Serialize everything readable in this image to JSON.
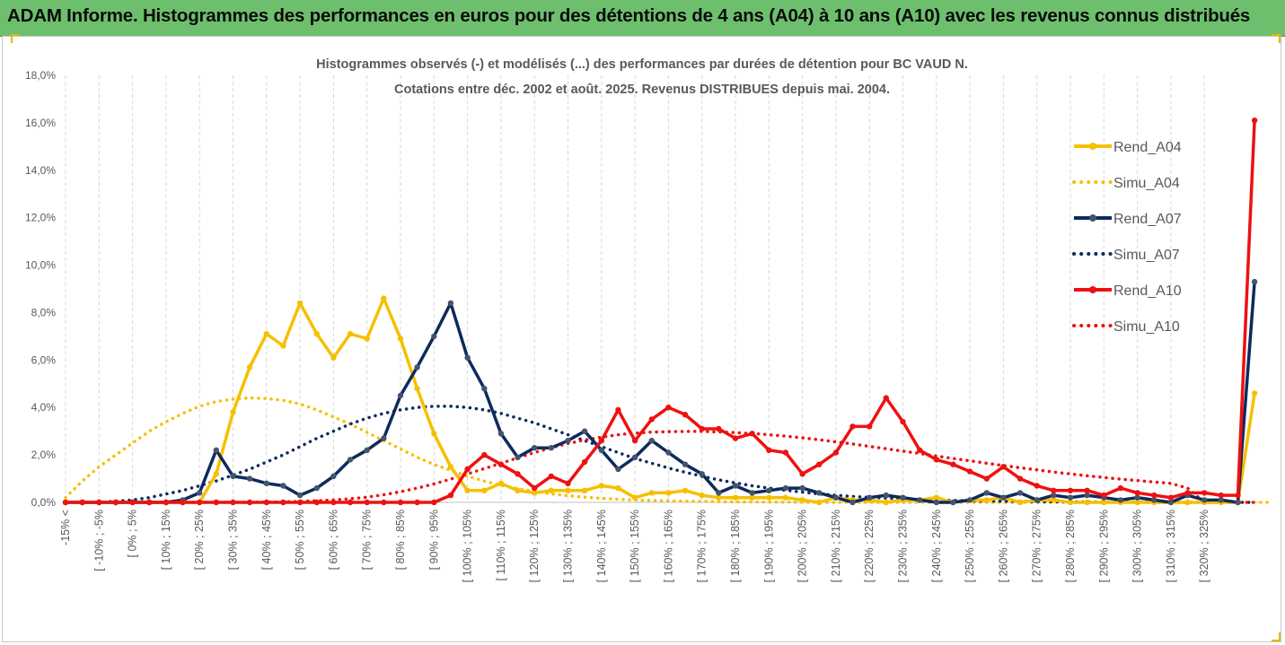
{
  "header": {
    "title": "ADAM Informe. Histogrammes des performances en euros pour des détentions de 4 ans (A04) à 10 ans (A10) avec les revenus connus distribués"
  },
  "colors": {
    "banner": "#6dbf6d",
    "a04": "#f5c000",
    "a07": "#0d2a5e",
    "a10": "#ee1111",
    "grid": "#d9d9d9",
    "text": "#595959"
  },
  "chart_data": {
    "type": "line",
    "title_lines": [
      "Histogrammes observés (-) et modélisés (...) des performances par durées de détention pour BC VAUD N.",
      "Cotations entre déc. 2002 et août. 2025. Revenus DISTRIBUES depuis mai. 2004."
    ],
    "ylim": [
      0,
      18
    ],
    "y_ticks": [
      "0,0%",
      "2,0%",
      "4,0%",
      "6,0%",
      "8,0%",
      "10,0%",
      "12,0%",
      "14,0%",
      "16,0%",
      "18,0%"
    ],
    "grid": "vertical dashed at labeled categories, y axis baseline",
    "legend_position": "right",
    "categories_labeled": [
      "-15% <",
      "[ -10% ; -5%",
      "[ 0% ; 5%",
      "[ 10% ; 15%",
      "[ 20% ; 25%",
      "[ 30% ; 35%",
      "[ 40% ; 45%",
      "[ 50% ; 55%",
      "[ 60% ; 65%",
      "[ 70% ; 75%",
      "[ 80% ; 85%",
      "[ 90% ; 95%",
      "[ 100% ; 105%",
      "[ 110% ; 115%",
      "[ 120% ; 125%",
      "[ 130% ; 135%",
      "[ 140% ; 145%",
      "[ 150% ; 155%",
      "[ 160% ; 165%",
      "[ 170% ; 175%",
      "[ 180% ; 185%",
      "[ 190% ; 195%",
      "[ 200% ; 205%",
      "[ 210% ; 215%",
      "[ 220% ; 225%",
      "[ 230% ; 235%",
      "[ 240% ; 245%",
      "[ 250% ; 255%",
      "[ 260% ; 265%",
      "[ 270% ; 275%",
      "[ 280% ; 285%",
      "[ 290% ; 295%",
      "[ 300% ; 305%",
      "[ 310% ; 315%",
      "[ 320% ; 325%"
    ],
    "series": [
      {
        "name": "Rend_A04",
        "style": "solid",
        "color": "#f5c000",
        "values": [
          0,
          0,
          0,
          0,
          0,
          0,
          0,
          0,
          0,
          1.2,
          3.8,
          5.7,
          7.1,
          6.6,
          8.4,
          7.1,
          6.1,
          7.1,
          6.9,
          8.6,
          6.9,
          4.8,
          2.9,
          1.5,
          0.5,
          0.5,
          0.8,
          0.5,
          0.4,
          0.5,
          0.5,
          0.5,
          0.7,
          0.6,
          0.2,
          0.4,
          0.4,
          0.5,
          0.3,
          0.2,
          0.2,
          0.2,
          0.2,
          0.2,
          0.1,
          0,
          0.2,
          0.1,
          0.1,
          0,
          0.1,
          0.1,
          0.2,
          0,
          0.1,
          0.1,
          0.2,
          0,
          0.1,
          0.1,
          0,
          0,
          0,
          0,
          0,
          0,
          0,
          0,
          0,
          0,
          0,
          4.6
        ]
      },
      {
        "name": "Simu_A04",
        "style": "dotted",
        "color": "#f5c000",
        "values": [
          0.2,
          0.9,
          1.5,
          2,
          2.5,
          3,
          3.4,
          3.75,
          4.05,
          4.25,
          4.35,
          4.4,
          4.38,
          4.3,
          4.15,
          3.9,
          3.6,
          3.3,
          2.95,
          2.6,
          2.25,
          1.9,
          1.6,
          1.35,
          1.1,
          0.9,
          0.72,
          0.58,
          0.46,
          0.36,
          0.28,
          0.22,
          0.17,
          0.13,
          0.1,
          0.08,
          0.06,
          0.05,
          0.04,
          0.03,
          0.02,
          0.02,
          0.01,
          0.01,
          0,
          0,
          0,
          0,
          0,
          0,
          0,
          0,
          0,
          0,
          0,
          0,
          0,
          0,
          0,
          0,
          0,
          0,
          0,
          0,
          0,
          0,
          0,
          0,
          0,
          0,
          0,
          0,
          0
        ]
      },
      {
        "name": "Rend_A07",
        "style": "solid",
        "color": "#0d2a5e",
        "values": [
          0,
          0,
          0,
          0,
          0,
          0,
          0,
          0.1,
          0.4,
          2.2,
          1.1,
          1,
          0.8,
          0.7,
          0.3,
          0.6,
          1.1,
          1.8,
          2.2,
          2.7,
          4.5,
          5.7,
          7,
          8.4,
          6.1,
          4.8,
          2.9,
          1.9,
          2.3,
          2.3,
          2.6,
          3,
          2.2,
          1.4,
          1.9,
          2.6,
          2.1,
          1.6,
          1.2,
          0.4,
          0.7,
          0.4,
          0.5,
          0.6,
          0.6,
          0.4,
          0.2,
          0,
          0.2,
          0.3,
          0.2,
          0.1,
          0,
          0,
          0.1,
          0.4,
          0.2,
          0.4,
          0.1,
          0.3,
          0.2,
          0.3,
          0.2,
          0.1,
          0.2,
          0.1,
          0,
          0.3,
          0.1,
          0.1,
          0,
          9.3
        ]
      },
      {
        "name": "Simu_A07",
        "style": "dotted",
        "color": "#0d2a5e",
        "values": [
          0,
          0,
          0,
          0.05,
          0.1,
          0.2,
          0.35,
          0.5,
          0.7,
          0.9,
          1.15,
          1.4,
          1.7,
          2,
          2.35,
          2.7,
          3,
          3.3,
          3.55,
          3.75,
          3.9,
          4,
          4.05,
          4.05,
          4,
          3.9,
          3.75,
          3.55,
          3.35,
          3.1,
          2.85,
          2.6,
          2.35,
          2.1,
          1.85,
          1.65,
          1.45,
          1.27,
          1.1,
          0.95,
          0.82,
          0.7,
          0.6,
          0.51,
          0.43,
          0.36,
          0.3,
          0.25,
          0.21,
          0.18,
          0.15,
          0.12,
          0.1,
          0.08,
          0.07,
          0.06,
          0.05,
          0.04,
          0.03,
          0.03,
          0.02,
          0.02,
          0.01,
          0.01,
          0.01,
          0,
          0,
          0,
          0,
          0,
          0,
          0
        ]
      },
      {
        "name": "Rend_A10",
        "style": "solid",
        "color": "#ee1111",
        "values": [
          0,
          0,
          0,
          0,
          0,
          0,
          0,
          0,
          0,
          0,
          0,
          0,
          0,
          0,
          0,
          0,
          0,
          0,
          0,
          0,
          0,
          0,
          0,
          0.3,
          1.4,
          2,
          1.6,
          1.2,
          0.6,
          1.1,
          0.8,
          1.7,
          2.6,
          3.9,
          2.6,
          3.5,
          4,
          3.7,
          3.1,
          3.1,
          2.7,
          2.9,
          2.2,
          2.1,
          1.2,
          1.6,
          2.1,
          3.2,
          3.2,
          4.4,
          3.4,
          2.2,
          1.8,
          1.6,
          1.3,
          1,
          1.5,
          1,
          0.7,
          0.5,
          0.5,
          0.5,
          0.3,
          0.6,
          0.4,
          0.3,
          0.2,
          0.4,
          0.4,
          0.3,
          0.3,
          16.1
        ]
      },
      {
        "name": "Simu_A10",
        "style": "dotted",
        "color": "#ee1111",
        "values": [
          0,
          0,
          0,
          0,
          0,
          0,
          0,
          0,
          0,
          0,
          0,
          0,
          0.01,
          0.02,
          0.04,
          0.07,
          0.1,
          0.15,
          0.22,
          0.32,
          0.45,
          0.6,
          0.78,
          0.98,
          1.2,
          1.42,
          1.65,
          1.88,
          2.1,
          2.3,
          2.48,
          2.63,
          2.75,
          2.85,
          2.92,
          2.96,
          2.98,
          2.99,
          2.99,
          2.97,
          2.94,
          2.9,
          2.85,
          2.79,
          2.72,
          2.64,
          2.55,
          2.46,
          2.36,
          2.26,
          2.16,
          2.06,
          1.95,
          1.85,
          1.75,
          1.65,
          1.55,
          1.46,
          1.37,
          1.28,
          1.2,
          1.12,
          1.05,
          0.98,
          0.92,
          0.86,
          0.8,
          0.6,
          0,
          0,
          0,
          0
        ]
      }
    ]
  }
}
